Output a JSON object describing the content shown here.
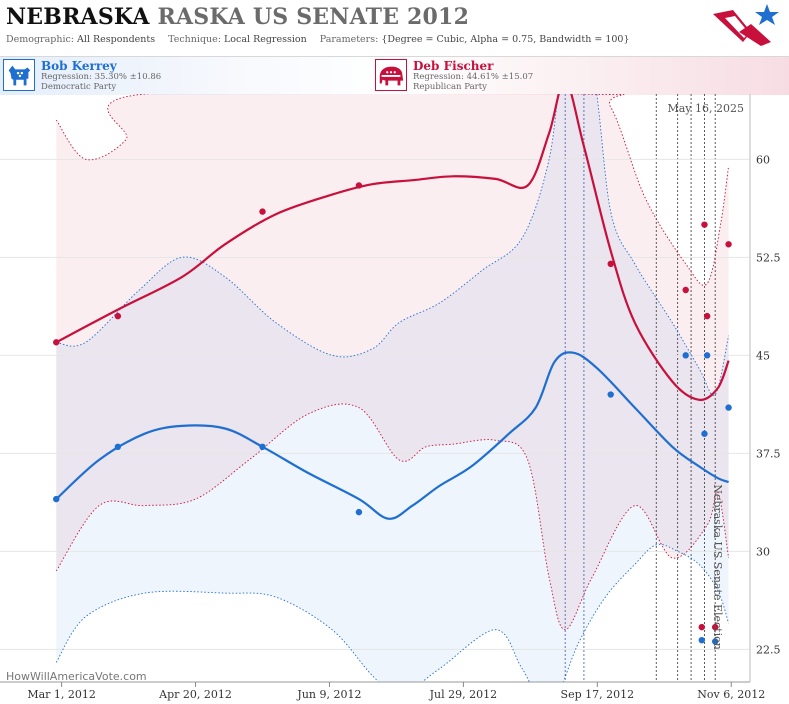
{
  "header": {
    "title_part1": "NEBRASKA",
    "title_part2": "RASKA US SENATE 2012",
    "demographic_label": "Demographic:",
    "demographic_value": "All Respondents",
    "technique_label": "Technique:",
    "technique_value": "Local Regression",
    "parameters_label": "Parameters:",
    "parameters_value": "{Degree = Cubic, Alpha = 0.75, Bandwidth = 100}"
  },
  "candidates": [
    {
      "name": "Bob Kerrey",
      "regression": "Regression: 35.30% ±10.86",
      "party": "Democratic Party",
      "color": "#1f6fd1",
      "icon": "donkey-icon"
    },
    {
      "name": "Deb Fischer",
      "regression": "Regression: 44.61% ±15.07",
      "party": "Republican Party",
      "color": "#c8103c",
      "icon": "elephant-icon"
    }
  ],
  "chart_data": {
    "type": "line",
    "date_stamp": "May 16, 2025",
    "side_title": "Nebraska US Senate Election",
    "watermark": "HowWillAmericaVote.com",
    "x_range": [
      "2012-02-07",
      "2012-11-13"
    ],
    "x_ticks": [
      "2012-03-01",
      "2012-04-20",
      "2012-06-09",
      "2012-07-29",
      "2012-09-17",
      "2012-11-06"
    ],
    "x_tick_labels": [
      "Mar 1, 2012",
      "Apr 20, 2012",
      "Jun 9, 2012",
      "Jul 29, 2012",
      "Sep 17, 2012",
      "Nov 6, 2012"
    ],
    "y_range": [
      20,
      65
    ],
    "y_ticks": [
      22.5,
      30,
      37.5,
      45,
      52.5,
      60
    ],
    "y_tick_labels": [
      "22.5",
      "30",
      "37.5",
      "45",
      "52.5",
      "60"
    ],
    "poll_date_lines": [
      "2012-09-05",
      "2012-09-12",
      "2012-10-09",
      "2012-10-17",
      "2012-10-22",
      "2012-10-27",
      "2012-10-31"
    ],
    "series": [
      {
        "name": "Bob Kerrey",
        "color": "#1f6fd1",
        "points": [
          {
            "x": "2012-02-28",
            "y": 34.0
          },
          {
            "x": "2012-03-22",
            "y": 38.0
          },
          {
            "x": "2012-05-15",
            "y": 38.0
          },
          {
            "x": "2012-06-20",
            "y": 33.0
          },
          {
            "x": "2012-09-22",
            "y": 42.0
          },
          {
            "x": "2012-10-20",
            "y": 45.0
          },
          {
            "x": "2012-10-27",
            "y": 39.0
          },
          {
            "x": "2012-10-28",
            "y": 45.0
          },
          {
            "x": "2012-11-05",
            "y": 41.0
          },
          {
            "x": "2012-10-26",
            "y": 23.2
          },
          {
            "x": "2012-10-31",
            "y": 23.1
          }
        ],
        "trend": [
          {
            "x": "2012-02-28",
            "y": 34.0
          },
          {
            "x": "2012-03-15",
            "y": 37.0
          },
          {
            "x": "2012-04-01",
            "y": 39.0
          },
          {
            "x": "2012-04-15",
            "y": 39.6
          },
          {
            "x": "2012-05-01",
            "y": 39.4
          },
          {
            "x": "2012-05-15",
            "y": 38.0
          },
          {
            "x": "2012-06-01",
            "y": 36.0
          },
          {
            "x": "2012-06-20",
            "y": 34.0
          },
          {
            "x": "2012-07-01",
            "y": 32.5
          },
          {
            "x": "2012-07-10",
            "y": 33.5
          },
          {
            "x": "2012-07-20",
            "y": 35.0
          },
          {
            "x": "2012-08-01",
            "y": 36.5
          },
          {
            "x": "2012-08-15",
            "y": 39.0
          },
          {
            "x": "2012-08-25",
            "y": 41.0
          },
          {
            "x": "2012-09-01",
            "y": 44.5
          },
          {
            "x": "2012-09-08",
            "y": 45.2
          },
          {
            "x": "2012-09-17",
            "y": 44.0
          },
          {
            "x": "2012-10-01",
            "y": 41.0
          },
          {
            "x": "2012-10-15",
            "y": 38.0
          },
          {
            "x": "2012-10-25",
            "y": 36.5
          },
          {
            "x": "2012-11-01",
            "y": 35.6
          },
          {
            "x": "2012-11-05",
            "y": 35.3
          }
        ],
        "upper": [
          {
            "x": "2012-02-28",
            "y": 46.0
          },
          {
            "x": "2012-03-10",
            "y": 46.0
          },
          {
            "x": "2012-03-30",
            "y": 50.0
          },
          {
            "x": "2012-04-15",
            "y": 52.5
          },
          {
            "x": "2012-05-01",
            "y": 51.0
          },
          {
            "x": "2012-05-20",
            "y": 47.5
          },
          {
            "x": "2012-06-10",
            "y": 45.0
          },
          {
            "x": "2012-06-25",
            "y": 45.5
          },
          {
            "x": "2012-07-05",
            "y": 47.5
          },
          {
            "x": "2012-07-20",
            "y": 49.0
          },
          {
            "x": "2012-08-05",
            "y": 51.5
          },
          {
            "x": "2012-08-20",
            "y": 54.0
          },
          {
            "x": "2012-08-30",
            "y": 60.0
          },
          {
            "x": "2012-09-05",
            "y": 68.0
          },
          {
            "x": "2012-09-15",
            "y": 67.0
          },
          {
            "x": "2012-09-22",
            "y": 56.0
          },
          {
            "x": "2012-10-01",
            "y": 52.0
          },
          {
            "x": "2012-10-15",
            "y": 47.5
          },
          {
            "x": "2012-10-25",
            "y": 44.0
          },
          {
            "x": "2012-10-31",
            "y": 42.0
          },
          {
            "x": "2012-11-05",
            "y": 46.5
          }
        ],
        "lower": [
          {
            "x": "2012-02-28",
            "y": 21.5
          },
          {
            "x": "2012-03-10",
            "y": 25.0
          },
          {
            "x": "2012-04-01",
            "y": 26.8
          },
          {
            "x": "2012-05-01",
            "y": 26.8
          },
          {
            "x": "2012-05-20",
            "y": 26.5
          },
          {
            "x": "2012-06-10",
            "y": 24.0
          },
          {
            "x": "2012-06-25",
            "y": 20.5
          },
          {
            "x": "2012-07-05",
            "y": 19.0
          },
          {
            "x": "2012-07-20",
            "y": 21.0
          },
          {
            "x": "2012-08-10",
            "y": 24.0
          },
          {
            "x": "2012-08-20",
            "y": 21.0
          },
          {
            "x": "2012-08-30",
            "y": 18.0
          },
          {
            "x": "2012-09-10",
            "y": 23.0
          },
          {
            "x": "2012-09-20",
            "y": 26.5
          },
          {
            "x": "2012-10-01",
            "y": 29.0
          },
          {
            "x": "2012-10-09",
            "y": 30.5
          },
          {
            "x": "2012-10-17",
            "y": 30.0
          },
          {
            "x": "2012-10-25",
            "y": 29.0
          },
          {
            "x": "2012-11-01",
            "y": 27.0
          },
          {
            "x": "2012-11-05",
            "y": 24.5
          }
        ]
      },
      {
        "name": "Deb Fischer",
        "color": "#c8103c",
        "points": [
          {
            "x": "2012-02-28",
            "y": 46.0
          },
          {
            "x": "2012-03-22",
            "y": 48.0
          },
          {
            "x": "2012-05-15",
            "y": 56.0
          },
          {
            "x": "2012-06-20",
            "y": 58.0
          },
          {
            "x": "2012-09-22",
            "y": 52.0
          },
          {
            "x": "2012-10-20",
            "y": 50.0
          },
          {
            "x": "2012-10-27",
            "y": 55.0
          },
          {
            "x": "2012-10-28",
            "y": 48.0
          },
          {
            "x": "2012-11-05",
            "y": 53.5
          },
          {
            "x": "2012-10-26",
            "y": 24.2
          },
          {
            "x": "2012-10-31",
            "y": 24.2
          }
        ],
        "trend": [
          {
            "x": "2012-02-28",
            "y": 46.0
          },
          {
            "x": "2012-03-22",
            "y": 48.5
          },
          {
            "x": "2012-04-15",
            "y": 51.0
          },
          {
            "x": "2012-05-01",
            "y": 53.5
          },
          {
            "x": "2012-05-20",
            "y": 55.8
          },
          {
            "x": "2012-06-10",
            "y": 57.3
          },
          {
            "x": "2012-06-25",
            "y": 58.1
          },
          {
            "x": "2012-07-10",
            "y": 58.4
          },
          {
            "x": "2012-07-25",
            "y": 58.7
          },
          {
            "x": "2012-08-10",
            "y": 58.5
          },
          {
            "x": "2012-08-22",
            "y": 58.0
          },
          {
            "x": "2012-08-30",
            "y": 62.0
          },
          {
            "x": "2012-09-05",
            "y": 66.0
          },
          {
            "x": "2012-09-12",
            "y": 61.0
          },
          {
            "x": "2012-09-22",
            "y": 53.0
          },
          {
            "x": "2012-10-01",
            "y": 47.5
          },
          {
            "x": "2012-10-15",
            "y": 43.0
          },
          {
            "x": "2012-10-25",
            "y": 41.6
          },
          {
            "x": "2012-11-01",
            "y": 42.5
          },
          {
            "x": "2012-11-05",
            "y": 44.6
          }
        ],
        "upper": [
          {
            "x": "2012-02-28",
            "y": 63.0
          },
          {
            "x": "2012-03-10",
            "y": 60.0
          },
          {
            "x": "2012-03-25",
            "y": 61.5
          },
          {
            "x": "2012-04-01",
            "y": 65.0
          },
          {
            "x": "2012-09-12",
            "y": 65.0
          },
          {
            "x": "2012-09-22",
            "y": 64.0
          },
          {
            "x": "2012-10-05",
            "y": 57.0
          },
          {
            "x": "2012-10-20",
            "y": 52.0
          },
          {
            "x": "2012-10-28",
            "y": 50.5
          },
          {
            "x": "2012-11-02",
            "y": 55.0
          },
          {
            "x": "2012-11-05",
            "y": 59.5
          }
        ],
        "lower": [
          {
            "x": "2012-02-28",
            "y": 28.5
          },
          {
            "x": "2012-03-15",
            "y": 33.5
          },
          {
            "x": "2012-04-01",
            "y": 33.5
          },
          {
            "x": "2012-04-20",
            "y": 34.0
          },
          {
            "x": "2012-05-10",
            "y": 37.0
          },
          {
            "x": "2012-06-01",
            "y": 40.5
          },
          {
            "x": "2012-06-20",
            "y": 41.0
          },
          {
            "x": "2012-07-05",
            "y": 37.0
          },
          {
            "x": "2012-07-15",
            "y": 38.0
          },
          {
            "x": "2012-07-25",
            "y": 38.2
          },
          {
            "x": "2012-08-10",
            "y": 38.5
          },
          {
            "x": "2012-08-22",
            "y": 37.0
          },
          {
            "x": "2012-08-30",
            "y": 28.0
          },
          {
            "x": "2012-09-05",
            "y": 24.0
          },
          {
            "x": "2012-09-15",
            "y": 28.0
          },
          {
            "x": "2012-10-01",
            "y": 33.5
          },
          {
            "x": "2012-10-15",
            "y": 29.5
          },
          {
            "x": "2012-10-28",
            "y": 32.0
          },
          {
            "x": "2012-11-01",
            "y": 34.5
          },
          {
            "x": "2012-11-05",
            "y": 29.5
          }
        ]
      }
    ]
  }
}
